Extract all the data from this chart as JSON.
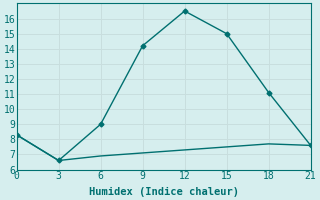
{
  "line1_x": [
    0,
    3,
    6,
    9,
    12,
    15,
    18,
    21
  ],
  "line1_y": [
    8.3,
    6.6,
    9.0,
    14.2,
    16.5,
    15.0,
    11.1,
    7.6
  ],
  "line2_x": [
    0,
    3,
    6,
    9,
    12,
    15,
    18,
    21
  ],
  "line2_y": [
    8.3,
    6.6,
    6.9,
    7.1,
    7.3,
    7.5,
    7.7,
    7.6
  ],
  "line_color": "#007070",
  "bg_color": "#d6eeee",
  "grid_color": "#b8d8d8",
  "xlabel": "Humidex (Indice chaleur)",
  "xlim": [
    0,
    21
  ],
  "ylim": [
    6,
    17
  ],
  "xticks": [
    0,
    3,
    6,
    9,
    12,
    15,
    18,
    21
  ],
  "yticks": [
    6,
    7,
    8,
    9,
    10,
    11,
    12,
    13,
    14,
    15,
    16
  ],
  "marker": "D",
  "markersize": 2.5,
  "linewidth": 1.0,
  "xlabel_fontsize": 7.5,
  "tick_fontsize": 7,
  "font_family": "monospace"
}
